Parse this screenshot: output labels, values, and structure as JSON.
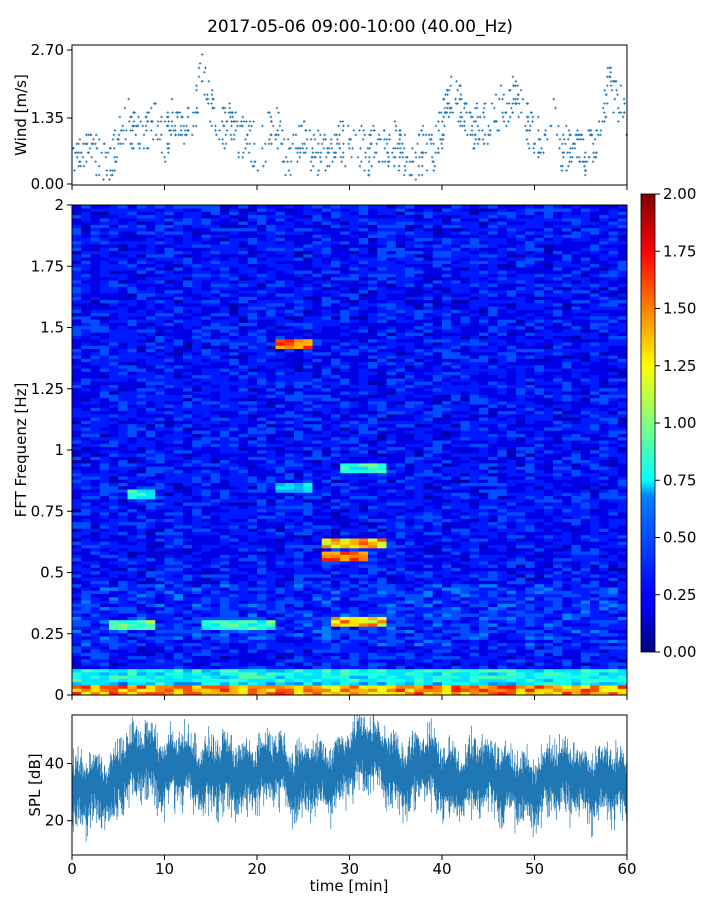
{
  "title": "2017-05-06 09:00-10:00 (40.00_Hz)",
  "chart_data": [
    {
      "type": "scatter",
      "panel": "wind",
      "ylabel": "Wind [m/s]",
      "xlim": [
        0,
        60
      ],
      "ylim": [
        0,
        2.7
      ],
      "yticks": [
        "0.00",
        "1.35",
        "2.70"
      ],
      "color": "#1f77b4",
      "series": [
        {
          "x": [
            0,
            1,
            2,
            3,
            4,
            5,
            6,
            7,
            8,
            9,
            10,
            11,
            12,
            13,
            14,
            15,
            16,
            17,
            18,
            19,
            20,
            21,
            22,
            23,
            24,
            25,
            26,
            27,
            28,
            29,
            30,
            31,
            32,
            33,
            34,
            35,
            36,
            37,
            38,
            39,
            40,
            41,
            42,
            43,
            44,
            45,
            46,
            47,
            48,
            49,
            50,
            51,
            52,
            53,
            54,
            55,
            56,
            57,
            58,
            59,
            60
          ],
          "values": [
            0.7,
            0.8,
            0.6,
            0.5,
            0.4,
            0.9,
            1.3,
            1.1,
            1.0,
            1.4,
            0.8,
            1.5,
            1.2,
            1.0,
            2.4,
            1.6,
            1.1,
            1.2,
            0.9,
            1.0,
            0.7,
            0.9,
            1.3,
            0.5,
            0.6,
            0.9,
            0.7,
            0.6,
            0.8,
            0.9,
            0.7,
            0.8,
            0.6,
            0.9,
            0.7,
            0.8,
            0.6,
            0.5,
            0.7,
            0.6,
            1.2,
            1.9,
            1.6,
            1.0,
            1.3,
            1.2,
            1.5,
            1.6,
            1.8,
            1.3,
            0.9,
            1.0,
            1.4,
            0.7,
            0.8,
            0.6,
            0.7,
            1.0,
            2.0,
            1.7,
            1.3
          ]
        }
      ]
    },
    {
      "type": "heatmap",
      "panel": "spectrogram",
      "ylabel": "FFT Frequenz [Hz]",
      "xlim": [
        0,
        60
      ],
      "ylim": [
        0,
        2
      ],
      "yticks": [
        "0",
        "0.25",
        "0.5",
        "0.75",
        "1",
        "1.25",
        "1.5",
        "1.75",
        "2"
      ],
      "colormap": "jet",
      "colorbar": {
        "min": 0,
        "max": 2,
        "ticks": [
          "0.00",
          "0.25",
          "0.50",
          "0.75",
          "1.00",
          "1.25",
          "1.50",
          "1.75",
          "2.00"
        ]
      },
      "background_level": 0.3,
      "features": [
        {
          "freq": 0.02,
          "t_start": 0,
          "t_end": 60,
          "level": 1.7
        },
        {
          "freq": 0.08,
          "t_start": 0,
          "t_end": 60,
          "level": 0.9
        },
        {
          "freq": 0.29,
          "t_start": 4,
          "t_end": 9,
          "level": 1.1
        },
        {
          "freq": 0.29,
          "t_start": 14,
          "t_end": 22,
          "level": 1.0
        },
        {
          "freq": 0.3,
          "t_start": 28,
          "t_end": 34,
          "level": 1.6
        },
        {
          "freq": 0.57,
          "t_start": 27,
          "t_end": 32,
          "level": 1.9
        },
        {
          "freq": 0.62,
          "t_start": 27,
          "t_end": 34,
          "level": 1.6
        },
        {
          "freq": 0.82,
          "t_start": 6,
          "t_end": 9,
          "level": 0.9
        },
        {
          "freq": 0.85,
          "t_start": 22,
          "t_end": 26,
          "level": 0.8
        },
        {
          "freq": 0.93,
          "t_start": 29,
          "t_end": 34,
          "level": 1.0
        },
        {
          "freq": 1.43,
          "t_start": 22,
          "t_end": 26,
          "level": 1.8
        }
      ]
    },
    {
      "type": "line",
      "panel": "spl",
      "xlabel": "time [min]",
      "ylabel": "SPL [dB]",
      "xlim": [
        0,
        60
      ],
      "ylim": [
        8,
        57
      ],
      "xticks": [
        "0",
        "10",
        "20",
        "30",
        "40",
        "50",
        "60"
      ],
      "yticks": [
        "20",
        "40"
      ],
      "color": "#1f77b4",
      "series": [
        {
          "x": [
            0,
            2,
            4,
            6,
            8,
            10,
            12,
            14,
            16,
            18,
            20,
            22,
            24,
            26,
            28,
            30,
            32,
            34,
            36,
            38,
            40,
            42,
            44,
            46,
            48,
            50,
            52,
            54,
            56,
            58,
            60
          ],
          "values": [
            30,
            32,
            31,
            40,
            43,
            37,
            41,
            35,
            38,
            35,
            37,
            40,
            34,
            37,
            35,
            42,
            45,
            40,
            35,
            41,
            36,
            33,
            38,
            35,
            33,
            30,
            37,
            36,
            33,
            35,
            32
          ]
        }
      ]
    }
  ]
}
